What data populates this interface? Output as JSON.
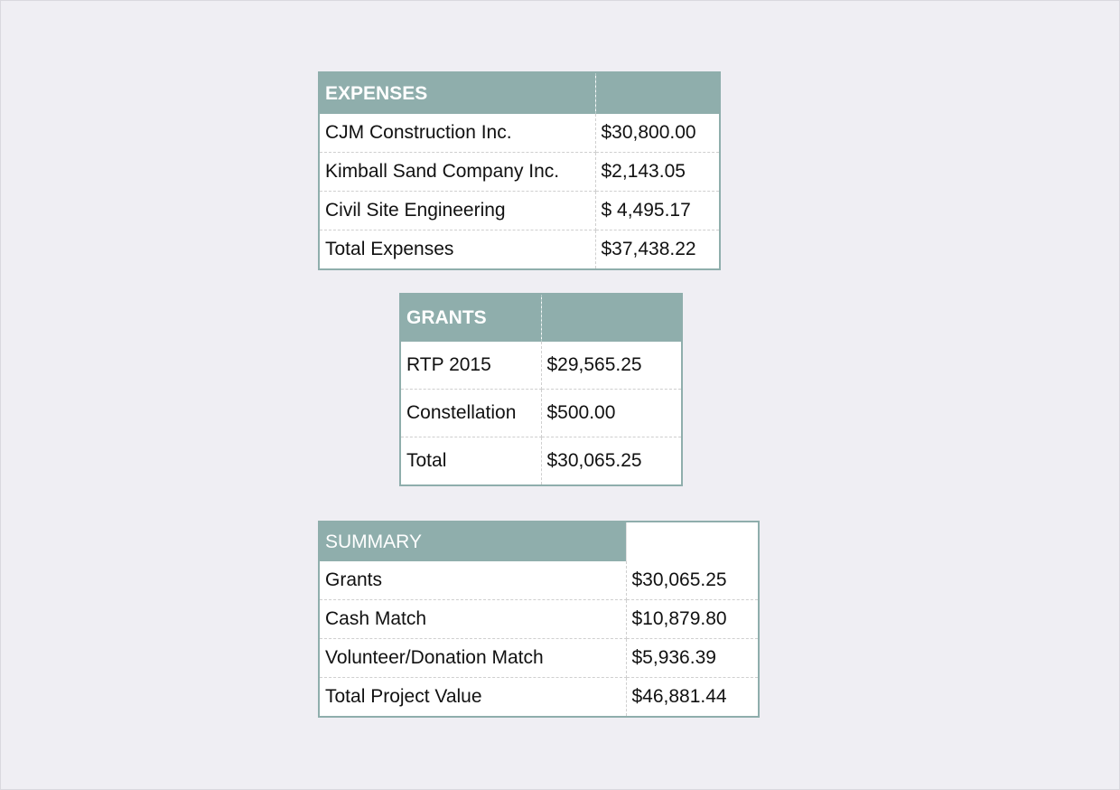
{
  "expenses": {
    "header": "EXPENSES",
    "rows": [
      {
        "label": "CJM Construction Inc.",
        "value": "$30,800.00"
      },
      {
        "label": "Kimball Sand Company Inc.",
        "value": "$2,143.05"
      },
      {
        "label": "Civil Site Engineering",
        "value": "$ 4,495.17"
      },
      {
        "label": "Total Expenses",
        "value": "$37,438.22"
      }
    ]
  },
  "grants": {
    "header": "GRANTS",
    "rows": [
      {
        "label": "RTP 2015",
        "value": "$29,565.25"
      },
      {
        "label": "Constellation",
        "value": "$500.00"
      },
      {
        "label": "Total",
        "value": "$30,065.25"
      }
    ]
  },
  "summary": {
    "header": "SUMMARY",
    "rows": [
      {
        "label": "Grants",
        "value": "$30,065.25"
      },
      {
        "label": "Cash Match",
        "value": "$10,879.80"
      },
      {
        "label": "Volunteer/Donation Match",
        "value": "$5,936.39"
      },
      {
        "label": "Total Project Value",
        "value": "$46,881.44"
      }
    ]
  },
  "colors": {
    "header_fill": "#8faeac",
    "page_background": "#efeef3"
  }
}
